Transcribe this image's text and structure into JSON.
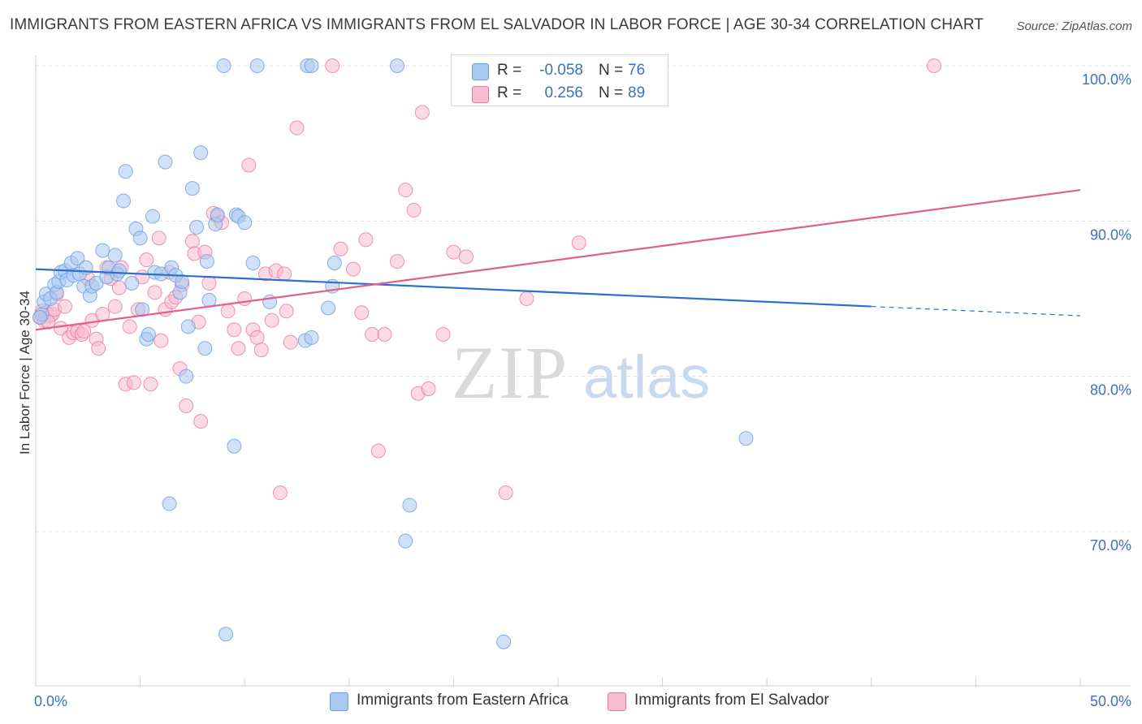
{
  "title": "IMMIGRANTS FROM EASTERN AFRICA VS IMMIGRANTS FROM EL SALVADOR IN LABOR FORCE | AGE 30-34 CORRELATION CHART",
  "source": "Source: ZipAtlas.com",
  "watermark": {
    "zip": "ZIP",
    "atlas": "atlas"
  },
  "legend": {
    "rows": [
      {
        "r_label": "R =",
        "r_value": "-0.058",
        "n_label": "N =",
        "n_value": "76",
        "color": "#a9c8f0"
      },
      {
        "r_label": "R =",
        "r_value": "0.256",
        "n_label": "N =",
        "n_value": "89",
        "color": "#f7bcd0"
      }
    ]
  },
  "bottom_legend": [
    {
      "label": "Immigrants from Eastern Africa",
      "color": "#a9c8f0"
    },
    {
      "label": "Immigrants from El Salvador",
      "color": "#f7bcd0"
    }
  ],
  "chart_data": {
    "type": "scatter",
    "title": "IMMIGRANTS FROM EASTERN AFRICA VS IMMIGRANTS FROM EL SALVADOR IN LABOR FORCE | AGE 30-34 CORRELATION CHART",
    "xlabel": "",
    "ylabel": "In Labor Force | Age 30-34",
    "xlim": [
      0,
      50
    ],
    "ylim": [
      60.5,
      101.5
    ],
    "x_tick_labels": [
      {
        "value": 0,
        "label": "0.0%"
      },
      {
        "value": 50,
        "label": "50.0%"
      }
    ],
    "y_tick_labels": [
      {
        "value": 100,
        "label": "100.0%"
      },
      {
        "value": 90,
        "label": "90.0%"
      },
      {
        "value": 80,
        "label": "80.0%"
      },
      {
        "value": 70,
        "label": "70.0%"
      }
    ],
    "x_minor_ticks": [
      5,
      10,
      15,
      20,
      25,
      30,
      35,
      40,
      45
    ],
    "grid": "horizontal dashed",
    "legend_position": "top-center",
    "colors": {
      "eastern_africa": "#6b9ee0",
      "eastern_africa_fill": "#a9c8f0",
      "el_salvador": "#e87aa0",
      "el_salvador_fill": "#f7bcd0",
      "trend_blue": "#2b6fcf",
      "trend_pink": "#e0608e"
    },
    "series": [
      {
        "name": "Immigrants from Eastern Africa",
        "R": -0.058,
        "N": 76,
        "trend": {
          "x": [
            0,
            40
          ],
          "y": [
            86.9,
            84.5
          ],
          "dashed_extension": {
            "x": [
              40,
              50
            ],
            "y": [
              84.5,
              83.9
            ]
          }
        },
        "points": [
          [
            0.3,
            84.0
          ],
          [
            0.4,
            84.8
          ],
          [
            0.5,
            85.3
          ],
          [
            0.7,
            85.0
          ],
          [
            0.9,
            85.9
          ],
          [
            1.0,
            85.4
          ],
          [
            1.1,
            86.1
          ],
          [
            1.2,
            86.7
          ],
          [
            1.4,
            86.8
          ],
          [
            1.5,
            86.2
          ],
          [
            1.7,
            87.3
          ],
          [
            1.8,
            86.5
          ],
          [
            2.0,
            87.6
          ],
          [
            2.1,
            86.6
          ],
          [
            2.3,
            85.8
          ],
          [
            2.4,
            87.0
          ],
          [
            2.6,
            85.2
          ],
          [
            2.7,
            85.8
          ],
          [
            2.9,
            86.0
          ],
          [
            3.2,
            88.1
          ],
          [
            3.4,
            86.4
          ],
          [
            3.5,
            87.0
          ],
          [
            3.8,
            87.8
          ],
          [
            3.9,
            86.6
          ],
          [
            4.0,
            86.8
          ],
          [
            4.2,
            91.3
          ],
          [
            4.3,
            93.2
          ],
          [
            4.6,
            86.0
          ],
          [
            4.8,
            89.5
          ],
          [
            5.0,
            88.9
          ],
          [
            5.1,
            84.3
          ],
          [
            5.3,
            82.4
          ],
          [
            5.4,
            82.7
          ],
          [
            5.6,
            90.3
          ],
          [
            5.7,
            86.7
          ],
          [
            6.0,
            86.6
          ],
          [
            6.2,
            93.8
          ],
          [
            6.4,
            71.8
          ],
          [
            6.5,
            87.0
          ],
          [
            6.7,
            86.5
          ],
          [
            6.9,
            85.4
          ],
          [
            7.0,
            86.1
          ],
          [
            7.2,
            80.0
          ],
          [
            7.3,
            83.2
          ],
          [
            7.5,
            92.1
          ],
          [
            7.7,
            89.6
          ],
          [
            7.9,
            94.4
          ],
          [
            8.1,
            81.8
          ],
          [
            8.2,
            87.4
          ],
          [
            8.3,
            84.9
          ],
          [
            8.6,
            89.8
          ],
          [
            8.7,
            90.4
          ],
          [
            9.0,
            100.0
          ],
          [
            9.1,
            63.4
          ],
          [
            9.5,
            75.5
          ],
          [
            9.6,
            90.4
          ],
          [
            9.7,
            90.3
          ],
          [
            10.0,
            89.9
          ],
          [
            10.4,
            87.3
          ],
          [
            10.6,
            100.0
          ],
          [
            11.2,
            84.8
          ],
          [
            12.9,
            82.3
          ],
          [
            13.0,
            100.0
          ],
          [
            13.2,
            100.0
          ],
          [
            13.2,
            82.5
          ],
          [
            14.0,
            84.4
          ],
          [
            14.2,
            85.8
          ],
          [
            14.3,
            87.3
          ],
          [
            17.3,
            100.0
          ],
          [
            17.7,
            69.4
          ],
          [
            17.9,
            71.7
          ],
          [
            22.4,
            62.9
          ],
          [
            23.3,
            100.0
          ],
          [
            27.3,
            100.0
          ],
          [
            34.0,
            76.0
          ],
          [
            0.2,
            83.8
          ]
        ]
      },
      {
        "name": "Immigrants from El Salvador",
        "R": 0.256,
        "N": 89,
        "trend": {
          "x": [
            0,
            50
          ],
          "y": [
            83.0,
            92.0
          ]
        },
        "points": [
          [
            0.2,
            83.8
          ],
          [
            0.3,
            84.2
          ],
          [
            0.4,
            83.6
          ],
          [
            0.5,
            84.1
          ],
          [
            0.7,
            83.9
          ],
          [
            0.8,
            84.0
          ],
          [
            0.9,
            84.3
          ],
          [
            1.0,
            85.3
          ],
          [
            1.2,
            83.1
          ],
          [
            1.4,
            84.5
          ],
          [
            1.6,
            82.5
          ],
          [
            1.8,
            82.8
          ],
          [
            2.0,
            82.9
          ],
          [
            2.2,
            82.7
          ],
          [
            2.3,
            82.9
          ],
          [
            2.5,
            86.3
          ],
          [
            2.7,
            83.6
          ],
          [
            2.9,
            82.4
          ],
          [
            3.0,
            81.8
          ],
          [
            3.2,
            84.0
          ],
          [
            3.4,
            87.0
          ],
          [
            3.6,
            86.3
          ],
          [
            3.8,
            84.5
          ],
          [
            4.0,
            85.7
          ],
          [
            4.1,
            87.0
          ],
          [
            4.3,
            79.5
          ],
          [
            4.5,
            83.2
          ],
          [
            4.7,
            79.6
          ],
          [
            4.9,
            84.3
          ],
          [
            5.1,
            86.4
          ],
          [
            5.3,
            87.5
          ],
          [
            5.5,
            79.5
          ],
          [
            5.7,
            85.4
          ],
          [
            5.9,
            88.9
          ],
          [
            6.0,
            82.3
          ],
          [
            6.2,
            84.3
          ],
          [
            6.4,
            86.7
          ],
          [
            6.5,
            84.8
          ],
          [
            6.7,
            85.1
          ],
          [
            6.9,
            80.5
          ],
          [
            7.0,
            85.9
          ],
          [
            7.2,
            78.1
          ],
          [
            7.5,
            88.7
          ],
          [
            7.6,
            87.9
          ],
          [
            7.8,
            83.5
          ],
          [
            7.9,
            77.1
          ],
          [
            8.1,
            88.0
          ],
          [
            8.3,
            86.0
          ],
          [
            8.5,
            90.5
          ],
          [
            8.7,
            90.3
          ],
          [
            8.9,
            89.9
          ],
          [
            9.2,
            84.2
          ],
          [
            9.5,
            83.0
          ],
          [
            9.7,
            81.8
          ],
          [
            10.0,
            85.0
          ],
          [
            10.2,
            93.6
          ],
          [
            10.4,
            83.0
          ],
          [
            10.6,
            82.5
          ],
          [
            10.8,
            81.7
          ],
          [
            11.0,
            86.6
          ],
          [
            11.3,
            83.6
          ],
          [
            11.5,
            86.8
          ],
          [
            11.7,
            72.5
          ],
          [
            11.9,
            86.6
          ],
          [
            12.0,
            84.2
          ],
          [
            12.2,
            82.2
          ],
          [
            12.5,
            96.0
          ],
          [
            14.2,
            100.0
          ],
          [
            14.6,
            88.2
          ],
          [
            15.2,
            86.9
          ],
          [
            15.6,
            84.1
          ],
          [
            15.8,
            88.8
          ],
          [
            16.1,
            82.7
          ],
          [
            16.4,
            75.2
          ],
          [
            16.7,
            82.7
          ],
          [
            17.3,
            87.4
          ],
          [
            17.7,
            92.0
          ],
          [
            18.1,
            90.7
          ],
          [
            18.3,
            78.9
          ],
          [
            18.5,
            97.0
          ],
          [
            18.8,
            79.2
          ],
          [
            19.5,
            82.7
          ],
          [
            20.0,
            88.0
          ],
          [
            20.6,
            87.7
          ],
          [
            22.5,
            72.5
          ],
          [
            23.5,
            85.0
          ],
          [
            26.0,
            88.6
          ],
          [
            43.0,
            100.0
          ],
          [
            0.6,
            83.5
          ]
        ]
      }
    ]
  }
}
